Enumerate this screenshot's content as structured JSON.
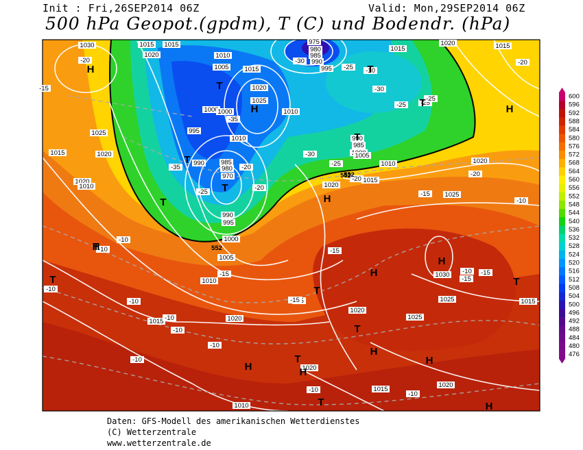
{
  "header": {
    "init": "Init : Fri,26SEP2014 06Z",
    "valid": "Valid: Mon,29SEP2014 06Z",
    "title": "500 hPa Geopot.(gpdm), T (C) und Bodendr. (hPa)"
  },
  "legend": {
    "values": [
      "600",
      "596",
      "592",
      "588",
      "584",
      "580",
      "576",
      "572",
      "568",
      "564",
      "560",
      "556",
      "552",
      "548",
      "544",
      "540",
      "536",
      "532",
      "528",
      "524",
      "520",
      "516",
      "512",
      "508",
      "504",
      "500",
      "496",
      "492",
      "488",
      "484",
      "480",
      "476"
    ],
    "colors": [
      "#c8006e",
      "#b4002c",
      "#c01400",
      "#d02400",
      "#e03c00",
      "#ec5600",
      "#f47000",
      "#fa8e00",
      "#ffb000",
      "#ffd000",
      "#ffee00",
      "#e6f000",
      "#bef000",
      "#8ce600",
      "#50dc00",
      "#14d214",
      "#00d26e",
      "#00dcaa",
      "#00d2d2",
      "#00b4ee",
      "#0096ff",
      "#0078ff",
      "#005aff",
      "#003cf0",
      "#1428d2",
      "#2814b4",
      "#3c0a96",
      "#500a8c",
      "#640a8c",
      "#700a8c",
      "#7a0a8c",
      "#840a8c"
    ]
  },
  "pressure_labels": [
    "1030",
    "1015",
    "1020",
    "975",
    "980",
    "985",
    "990",
    "995",
    "1010",
    "1005",
    "1015",
    "1020",
    "1025",
    "1000",
    "1000",
    "1010",
    "1020",
    "1015",
    "1015",
    "1025",
    "1020",
    "1010",
    "995",
    "990",
    "985",
    "980",
    "970",
    "990",
    "995",
    "1000",
    "1005",
    "1010",
    "990",
    "985",
    "980",
    "1000",
    "1005",
    "1010",
    "1020",
    "1015",
    "1025",
    "1020",
    "1010",
    "1015",
    "1020",
    "1030",
    "1025",
    "1015",
    "1015",
    "1020",
    "1025",
    "1020",
    "1015",
    "1020",
    "1010",
    "1020",
    "1015"
  ],
  "temperature_labels": [
    "-20",
    "-15",
    "-30",
    "-35",
    "-25",
    "-35",
    "-25",
    "-20",
    "-20",
    "-30",
    "-25",
    "-30",
    "-25",
    "-20",
    "-25",
    "-25",
    "-20",
    "-15",
    "-15",
    "-10",
    "-10",
    "-15",
    "-10",
    "-10",
    "-10",
    "-10",
    "-15",
    "-15",
    "-10",
    "-15",
    "-10",
    "-10",
    "-10",
    "-10",
    "-10",
    "-15",
    "-20",
    "-10"
  ],
  "geopotential_labels": [
    "552",
    "552",
    "552"
  ],
  "lows": [
    "T",
    "T",
    "T",
    "T",
    "T",
    "T",
    "T",
    "T",
    "T",
    "T",
    "T",
    "T",
    "T",
    "T"
  ],
  "highs": [
    "H",
    "H",
    "H",
    "H",
    "H",
    "H",
    "H",
    "H",
    "H",
    "H",
    "H",
    "H"
  ],
  "credits": {
    "line1": "Daten: GFS-Modell des amerikanischen Wetterdienstes",
    "line2": "(C) Wetterzentrale",
    "line3": "www.wetterzentrale.de"
  }
}
